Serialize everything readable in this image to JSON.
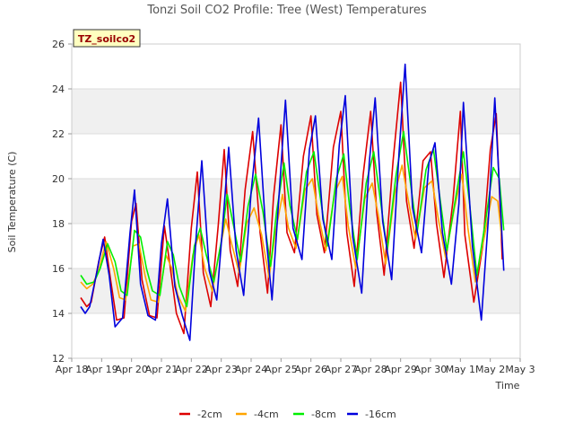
{
  "chart_data": {
    "type": "line",
    "title": "Tonzi Soil CO2 Profile: Tree (West) Temperatures",
    "xlabel": "Time",
    "ylabel": "Soil Temperature (C)",
    "tag": "TZ_soilco2",
    "ylim": [
      12,
      26
    ],
    "yticks": [
      12,
      14,
      16,
      18,
      20,
      22,
      24,
      26
    ],
    "xlim": [
      0,
      15
    ],
    "xticks": [
      {
        "v": 0,
        "label": "Apr 18"
      },
      {
        "v": 1,
        "label": "Apr 19"
      },
      {
        "v": 2,
        "label": "Apr 20"
      },
      {
        "v": 3,
        "label": "Apr 21"
      },
      {
        "v": 4,
        "label": "Apr 22"
      },
      {
        "v": 5,
        "label": "Apr 23"
      },
      {
        "v": 6,
        "label": "Apr 24"
      },
      {
        "v": 7,
        "label": "Apr 25"
      },
      {
        "v": 8,
        "label": "Apr 26"
      },
      {
        "v": 9,
        "label": "Apr 27"
      },
      {
        "v": 10,
        "label": "Apr 28"
      },
      {
        "v": 11,
        "label": "Apr 29"
      },
      {
        "v": 12,
        "label": "Apr 30"
      },
      {
        "v": 13,
        "label": "May 1"
      },
      {
        "v": 14,
        "label": "May 2"
      },
      {
        "v": 15,
        "label": "May 3"
      }
    ],
    "grid_bands": true,
    "legend_position": "bottom",
    "x_unit": "days since Apr 18",
    "series": [
      {
        "name": "-2cm",
        "color": "#dd0000",
        "x": [
          0.3,
          0.5,
          0.65,
          0.9,
          1.1,
          1.3,
          1.5,
          1.75,
          2.0,
          2.15,
          2.35,
          2.6,
          2.85,
          3.1,
          3.3,
          3.5,
          3.75,
          4.0,
          4.2,
          4.4,
          4.65,
          4.9,
          5.1,
          5.3,
          5.55,
          5.8,
          6.05,
          6.3,
          6.55,
          6.75,
          7.0,
          7.2,
          7.45,
          7.75,
          8.0,
          8.2,
          8.45,
          8.75,
          9.0,
          9.2,
          9.45,
          9.75,
          10.0,
          10.2,
          10.45,
          10.75,
          11.0,
          11.2,
          11.45,
          11.75,
          12.0,
          12.2,
          12.45,
          12.75,
          13.0,
          13.15,
          13.45,
          13.75,
          14.0,
          14.2,
          14.4
        ],
        "y": [
          14.7,
          14.3,
          14.5,
          16.3,
          17.4,
          15.5,
          13.7,
          13.8,
          18.1,
          18.9,
          15.5,
          13.9,
          13.8,
          17.9,
          16.0,
          14.0,
          13.1,
          17.8,
          20.3,
          15.8,
          14.3,
          17.9,
          21.3,
          16.8,
          15.2,
          19.5,
          22.1,
          17.6,
          14.9,
          19.2,
          22.4,
          17.6,
          16.7,
          21.0,
          22.8,
          18.4,
          16.7,
          21.4,
          23.0,
          17.6,
          15.2,
          20.2,
          23.0,
          18.5,
          15.7,
          20.8,
          24.3,
          19.0,
          16.9,
          20.8,
          21.2,
          18.0,
          15.6,
          19.0,
          23.0,
          17.5,
          14.5,
          17.0,
          21.3,
          22.9,
          16.4
        ]
      },
      {
        "name": "-4cm",
        "color": "#ffa500",
        "x": [
          0.3,
          0.5,
          0.7,
          0.9,
          1.15,
          1.4,
          1.6,
          1.8,
          2.05,
          2.25,
          2.45,
          2.65,
          2.9,
          3.15,
          3.35,
          3.55,
          3.8,
          4.05,
          4.25,
          4.45,
          4.7,
          4.95,
          5.15,
          5.35,
          5.6,
          5.85,
          6.1,
          6.35,
          6.6,
          6.8,
          7.05,
          7.25,
          7.5,
          7.8,
          8.05,
          8.25,
          8.5,
          8.8,
          9.05,
          9.25,
          9.5,
          9.8,
          10.05,
          10.25,
          10.5,
          10.8,
          11.05,
          11.25,
          11.5,
          11.8,
          12.05,
          12.25,
          12.5,
          12.8,
          13.05,
          13.25,
          13.5,
          13.8,
          14.05,
          14.25,
          14.4
        ],
        "y": [
          15.4,
          15.1,
          15.3,
          15.9,
          17.2,
          16.0,
          14.7,
          14.6,
          17.0,
          17.1,
          15.7,
          14.6,
          14.5,
          16.6,
          16.0,
          14.8,
          14.1,
          16.6,
          17.5,
          16.0,
          15.0,
          16.8,
          18.2,
          17.1,
          15.8,
          18.0,
          18.7,
          17.5,
          15.6,
          17.5,
          19.3,
          17.8,
          16.9,
          19.5,
          20.0,
          18.4,
          16.8,
          19.4,
          20.1,
          17.9,
          16.0,
          19.1,
          19.8,
          18.4,
          16.2,
          19.3,
          20.6,
          19.1,
          17.3,
          19.6,
          19.9,
          18.3,
          16.5,
          18.7,
          20.2,
          17.8,
          15.4,
          17.4,
          19.2,
          19.0,
          17.2
        ]
      },
      {
        "name": "-8cm",
        "color": "#00ee00",
        "x": [
          0.3,
          0.5,
          0.75,
          0.95,
          1.2,
          1.45,
          1.65,
          1.85,
          2.1,
          2.3,
          2.5,
          2.7,
          2.95,
          3.2,
          3.4,
          3.6,
          3.85,
          4.1,
          4.3,
          4.5,
          4.75,
          5.0,
          5.2,
          5.4,
          5.65,
          5.9,
          6.15,
          6.4,
          6.65,
          6.85,
          7.1,
          7.3,
          7.55,
          7.85,
          8.1,
          8.3,
          8.55,
          8.85,
          9.1,
          9.3,
          9.55,
          9.85,
          10.1,
          10.3,
          10.55,
          10.85,
          11.1,
          11.3,
          11.55,
          11.85,
          12.1,
          12.3,
          12.55,
          12.85,
          13.1,
          13.3,
          13.55,
          13.85,
          14.1,
          14.3,
          14.45
        ],
        "y": [
          15.7,
          15.3,
          15.4,
          16.0,
          17.1,
          16.3,
          15.0,
          14.8,
          17.7,
          17.4,
          16.0,
          15.0,
          14.8,
          17.2,
          16.6,
          15.2,
          14.3,
          17.0,
          17.8,
          16.6,
          15.4,
          17.2,
          19.3,
          18.0,
          16.3,
          18.8,
          20.2,
          18.5,
          16.1,
          18.5,
          20.7,
          18.8,
          17.3,
          20.3,
          21.2,
          19.3,
          17.0,
          20.0,
          21.1,
          18.7,
          16.4,
          19.8,
          21.2,
          19.3,
          16.8,
          20.2,
          22.1,
          20.1,
          17.6,
          20.4,
          21.3,
          19.3,
          16.8,
          19.2,
          21.2,
          19.0,
          15.7,
          18.2,
          20.5,
          20.0,
          17.7
        ]
      },
      {
        "name": "-16cm",
        "color": "#0000dd",
        "x": [
          0.3,
          0.45,
          0.6,
          0.85,
          1.05,
          1.25,
          1.45,
          1.7,
          1.95,
          2.1,
          2.3,
          2.55,
          2.8,
          3.0,
          3.2,
          3.45,
          3.7,
          3.95,
          4.15,
          4.35,
          4.6,
          4.85,
          5.05,
          5.25,
          5.5,
          5.75,
          6.0,
          6.25,
          6.5,
          6.7,
          6.95,
          7.15,
          7.4,
          7.7,
          7.95,
          8.15,
          8.4,
          8.7,
          8.95,
          9.15,
          9.4,
          9.7,
          9.95,
          10.15,
          10.4,
          10.7,
          10.95,
          11.15,
          11.4,
          11.7,
          11.95,
          12.15,
          12.4,
          12.7,
          12.95,
          13.1,
          13.4,
          13.7,
          13.95,
          14.15,
          14.45
        ],
        "y": [
          14.3,
          14.0,
          14.3,
          15.9,
          17.3,
          15.7,
          13.4,
          13.8,
          17.6,
          19.5,
          15.3,
          13.9,
          13.7,
          17.1,
          19.1,
          15.2,
          13.9,
          12.8,
          17.2,
          20.8,
          15.9,
          14.6,
          17.9,
          21.4,
          16.8,
          14.8,
          19.4,
          22.7,
          17.4,
          14.6,
          19.6,
          23.5,
          17.8,
          16.4,
          21.3,
          22.8,
          18.2,
          16.4,
          21.5,
          23.7,
          17.4,
          14.9,
          20.7,
          23.6,
          18.1,
          15.5,
          21.2,
          25.1,
          18.7,
          16.7,
          20.7,
          21.6,
          17.6,
          15.3,
          18.9,
          23.4,
          17.0,
          13.7,
          18.5,
          23.6,
          15.9
        ]
      }
    ]
  }
}
